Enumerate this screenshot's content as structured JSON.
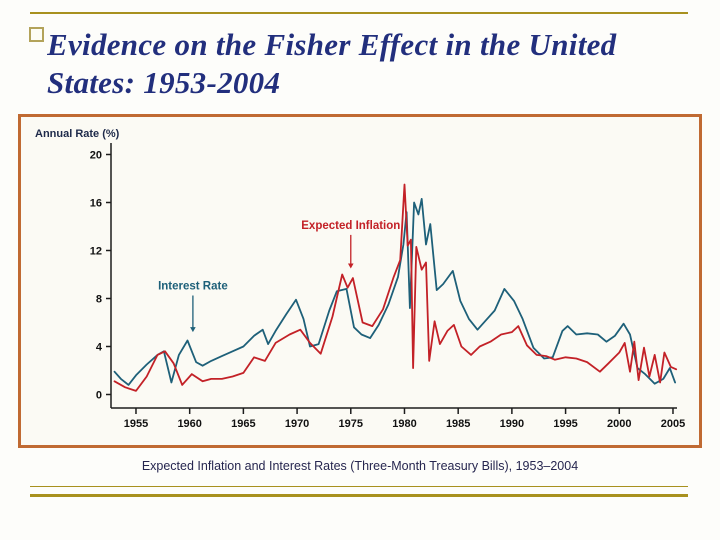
{
  "theme": {
    "gold": "#a8911e",
    "title_color": "#222f7d",
    "chart_border": "#c06a32",
    "caption_color": "#26264f",
    "axis_color": "#1c1c1c",
    "tick_label_color": "#111111",
    "ylabel_color": "#1e2a4a",
    "slide_bg": "#fdfdfa",
    "chart_bg": "#fbfaf4",
    "bullet_border": "#b3a35a"
  },
  "slide": {
    "title": {
      "line1": "Evidence on the Fisher Effect in the United",
      "line2": "States: 1953-2004"
    },
    "caption": "Expected Inflation and Interest Rates (Three-Month Treasury Bills), 1953–2004"
  },
  "chart_data": {
    "type": "line",
    "title": "Expected Inflation and Interest Rates (Three-Month Treasury Bills), 1953–2004",
    "ylabel": "Annual Rate (%)",
    "xlabel": "",
    "grid": false,
    "legend": "in-chart annotations",
    "xlim": [
      1953,
      2006
    ],
    "ylim": [
      -1.1,
      21
    ],
    "x_ticks": [
      1955,
      1960,
      1965,
      1970,
      1975,
      1980,
      1985,
      1990,
      1995,
      2000,
      2005
    ],
    "y_ticks": [
      0,
      4,
      8,
      12,
      16,
      20
    ],
    "series": [
      {
        "name": "Interest Rate",
        "color": "#1e6079",
        "points": [
          [
            1953.0,
            1.9
          ],
          [
            1953.6,
            1.3
          ],
          [
            1954.3,
            0.8
          ],
          [
            1955.0,
            1.6
          ],
          [
            1956.0,
            2.5
          ],
          [
            1957.0,
            3.3
          ],
          [
            1957.6,
            3.6
          ],
          [
            1958.3,
            1.0
          ],
          [
            1959.0,
            3.3
          ],
          [
            1959.8,
            4.5
          ],
          [
            1960.6,
            2.7
          ],
          [
            1961.2,
            2.4
          ],
          [
            1962.0,
            2.8
          ],
          [
            1963.0,
            3.2
          ],
          [
            1964.0,
            3.6
          ],
          [
            1965.0,
            4.0
          ],
          [
            1966.0,
            4.9
          ],
          [
            1966.8,
            5.4
          ],
          [
            1967.3,
            4.2
          ],
          [
            1968.0,
            5.3
          ],
          [
            1969.0,
            6.7
          ],
          [
            1969.9,
            7.9
          ],
          [
            1970.6,
            6.3
          ],
          [
            1971.2,
            4.0
          ],
          [
            1972.0,
            4.2
          ],
          [
            1973.0,
            7.0
          ],
          [
            1973.7,
            8.6
          ],
          [
            1974.6,
            8.8
          ],
          [
            1975.3,
            5.6
          ],
          [
            1976.0,
            5.0
          ],
          [
            1976.8,
            4.7
          ],
          [
            1977.6,
            5.8
          ],
          [
            1978.5,
            7.5
          ],
          [
            1979.4,
            9.8
          ],
          [
            1979.9,
            12.5
          ],
          [
            1980.2,
            15.2
          ],
          [
            1980.5,
            7.2
          ],
          [
            1980.9,
            16.0
          ],
          [
            1981.3,
            15.0
          ],
          [
            1981.6,
            16.3
          ],
          [
            1982.0,
            12.5
          ],
          [
            1982.4,
            14.2
          ],
          [
            1983.0,
            8.7
          ],
          [
            1983.6,
            9.2
          ],
          [
            1984.5,
            10.3
          ],
          [
            1985.2,
            7.8
          ],
          [
            1986.0,
            6.3
          ],
          [
            1986.8,
            5.4
          ],
          [
            1987.5,
            6.1
          ],
          [
            1988.4,
            7.0
          ],
          [
            1989.3,
            8.8
          ],
          [
            1990.2,
            7.8
          ],
          [
            1991.0,
            6.3
          ],
          [
            1992.0,
            3.9
          ],
          [
            1993.0,
            3.0
          ],
          [
            1993.8,
            3.1
          ],
          [
            1994.7,
            5.3
          ],
          [
            1995.2,
            5.7
          ],
          [
            1996.0,
            5.0
          ],
          [
            1997.0,
            5.1
          ],
          [
            1998.0,
            5.0
          ],
          [
            1998.8,
            4.4
          ],
          [
            1999.6,
            4.9
          ],
          [
            2000.4,
            5.9
          ],
          [
            2001.0,
            5.0
          ],
          [
            2001.7,
            2.2
          ],
          [
            2002.4,
            1.7
          ],
          [
            2003.3,
            0.9
          ],
          [
            2004.1,
            1.3
          ],
          [
            2004.7,
            2.2
          ],
          [
            2005.2,
            1.0
          ]
        ]
      },
      {
        "name": "Expected Inflation",
        "color": "#c32127",
        "points": [
          [
            1953.0,
            1.1
          ],
          [
            1954.0,
            0.6
          ],
          [
            1955.0,
            0.3
          ],
          [
            1956.0,
            1.5
          ],
          [
            1957.0,
            3.3
          ],
          [
            1957.7,
            3.6
          ],
          [
            1958.5,
            2.6
          ],
          [
            1959.3,
            0.8
          ],
          [
            1960.2,
            1.7
          ],
          [
            1961.2,
            1.1
          ],
          [
            1962.0,
            1.3
          ],
          [
            1963.0,
            1.3
          ],
          [
            1964.0,
            1.5
          ],
          [
            1965.0,
            1.8
          ],
          [
            1966.0,
            3.1
          ],
          [
            1967.0,
            2.8
          ],
          [
            1968.0,
            4.3
          ],
          [
            1969.3,
            5.0
          ],
          [
            1970.3,
            5.4
          ],
          [
            1971.2,
            4.3
          ],
          [
            1972.2,
            3.4
          ],
          [
            1973.3,
            6.5
          ],
          [
            1974.2,
            10.0
          ],
          [
            1974.7,
            8.9
          ],
          [
            1975.2,
            9.7
          ],
          [
            1976.1,
            6.0
          ],
          [
            1977.0,
            5.7
          ],
          [
            1978.0,
            7.1
          ],
          [
            1979.0,
            9.8
          ],
          [
            1979.6,
            11.2
          ],
          [
            1980.0,
            17.5
          ],
          [
            1980.3,
            12.4
          ],
          [
            1980.6,
            12.9
          ],
          [
            1980.8,
            2.2
          ],
          [
            1981.1,
            12.3
          ],
          [
            1981.6,
            10.4
          ],
          [
            1982.0,
            11.0
          ],
          [
            1982.3,
            2.8
          ],
          [
            1982.8,
            6.1
          ],
          [
            1983.3,
            4.2
          ],
          [
            1984.0,
            5.3
          ],
          [
            1984.6,
            5.8
          ],
          [
            1985.3,
            4.0
          ],
          [
            1986.2,
            3.3
          ],
          [
            1987.0,
            4.0
          ],
          [
            1988.0,
            4.4
          ],
          [
            1989.0,
            5.0
          ],
          [
            1990.0,
            5.2
          ],
          [
            1990.6,
            5.7
          ],
          [
            1991.4,
            4.1
          ],
          [
            1992.3,
            3.3
          ],
          [
            1993.2,
            3.2
          ],
          [
            1994.0,
            2.9
          ],
          [
            1995.0,
            3.1
          ],
          [
            1996.0,
            3.0
          ],
          [
            1997.0,
            2.7
          ],
          [
            1998.2,
            1.9
          ],
          [
            1999.0,
            2.6
          ],
          [
            2000.0,
            3.5
          ],
          [
            2000.5,
            4.3
          ],
          [
            2001.0,
            1.9
          ],
          [
            2001.4,
            4.4
          ],
          [
            2001.8,
            1.2
          ],
          [
            2002.3,
            3.9
          ],
          [
            2002.8,
            1.5
          ],
          [
            2003.3,
            3.3
          ],
          [
            2003.8,
            1.0
          ],
          [
            2004.2,
            3.5
          ],
          [
            2004.8,
            2.3
          ],
          [
            2005.3,
            2.1
          ]
        ]
      }
    ],
    "annotations": [
      {
        "text": "Expected Inflation",
        "color": "#c32127",
        "x": 1975,
        "label_y": 13.8,
        "arrow_to_y": 10.5
      },
      {
        "text": "Interest Rate",
        "color": "#1e6079",
        "x": 1960.3,
        "label_y": 8.75,
        "arrow_to_y": 5.2
      }
    ]
  }
}
